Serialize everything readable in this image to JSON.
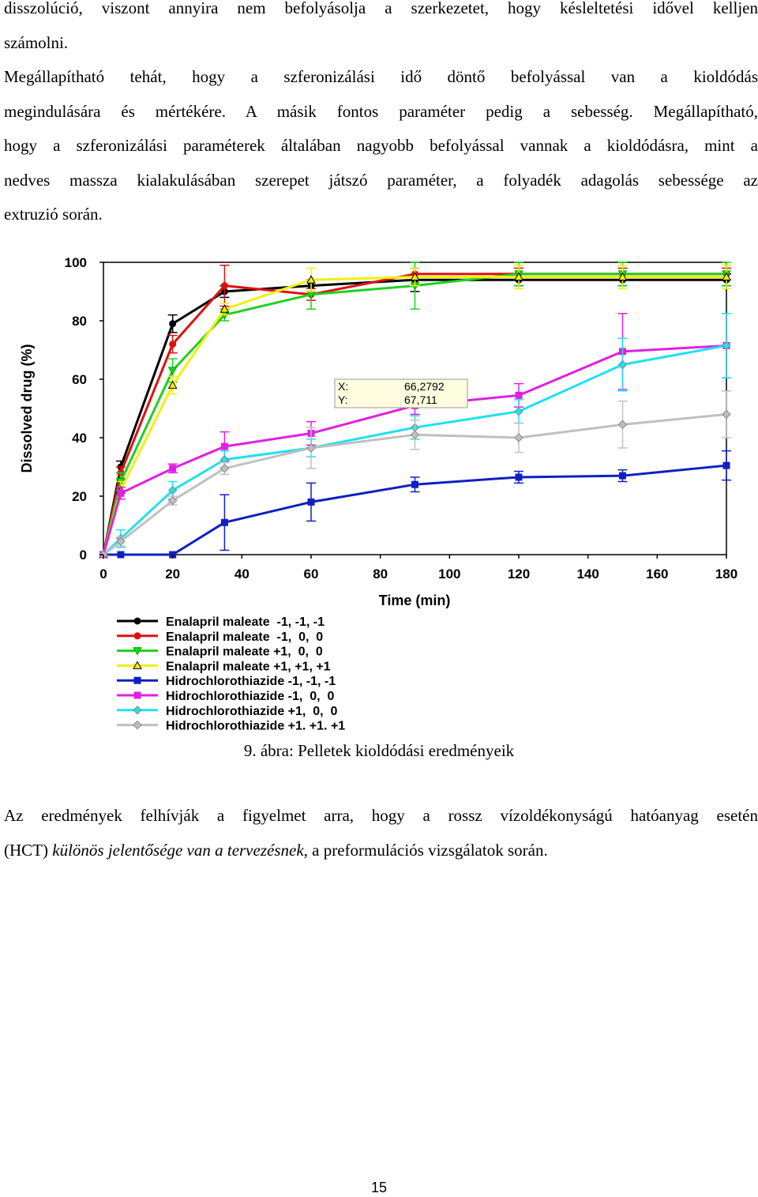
{
  "paragraph_1": {
    "lines": [
      "disszolúció, viszont annyira nem befolyásolja a szerkezetet, hogy késleltetési idővel kelljen",
      "számolni.",
      "Megállapítható tehát, hogy a szferonizálási idő döntő befolyással van a kioldódás",
      "megindulására és mértékére. A másik fontos paraméter pedig a sebesség. Megállapítható,",
      "hogy a szferonizálási paraméterek általában nagyobb befolyással vannak a kioldódásra, mint a",
      "nedves massza kialakulásában szerepet játszó paraméter, a folyadék adagolás sebessége az",
      "extruzió során."
    ]
  },
  "figure_caption": "9. ábra: Pelletek kioldódási eredményeik",
  "paragraph_2": {
    "line_1": "Az eredmények felhívják a figyelmet arra, hogy a rossz vízoldékonyságú hatóanyag esetén",
    "line_2_prefix": "(HCT) ",
    "line_2_italic": "különös jelentősége van a tervezésnek",
    "line_2_suffix": ", a preformulációs vizsgálatok során."
  },
  "page_number": "15",
  "chart_data": {
    "type": "line",
    "xlabel": "Time (min)",
    "ylabel": "Dissolved drug (%)",
    "xlim": [
      0,
      180
    ],
    "ylim": [
      0,
      100
    ],
    "xticks": [
      0,
      20,
      40,
      60,
      80,
      100,
      120,
      140,
      160,
      180
    ],
    "yticks": [
      0,
      20,
      40,
      60,
      80,
      100
    ],
    "x": [
      0,
      5,
      20,
      35,
      60,
      90,
      120,
      150,
      180
    ],
    "series": [
      {
        "name": "Enalapril maleate  -1, -1, -1",
        "color": "#000000",
        "marker": "circle",
        "values": [
          0,
          30,
          79,
          90,
          92,
          94,
          94,
          94,
          94
        ],
        "errors": [
          0,
          2,
          3,
          2,
          2,
          4,
          2,
          2,
          2
        ]
      },
      {
        "name": "Enalapril maleate  -1,  0,  0",
        "color": "#e01010",
        "marker": "circle",
        "values": [
          0,
          28,
          72,
          92,
          89,
          96,
          96,
          96,
          96
        ],
        "errors": [
          0,
          2,
          3,
          7,
          2,
          2,
          2,
          2,
          2
        ]
      },
      {
        "name": "Enalapril maleate +1,  0,  0",
        "color": "#20d020",
        "marker": "triangle-down",
        "values": [
          0,
          25,
          63,
          82,
          89,
          92,
          96,
          96,
          96
        ],
        "errors": [
          0,
          3,
          4,
          2,
          5,
          8,
          4,
          4,
          4
        ]
      },
      {
        "name": "Enalapril maleate +1, +1, +1",
        "color": "#f0f010",
        "marker": "triangle-up",
        "values": [
          0,
          22,
          58,
          84,
          94,
          95,
          95,
          95,
          95
        ],
        "errors": [
          0,
          3,
          3,
          2,
          4,
          3,
          4,
          4,
          4
        ]
      },
      {
        "name": "Hidrochlorothiazide -1, -1, -1",
        "color": "#1020c0",
        "marker": "square",
        "values": [
          0,
          0,
          0,
          11,
          18,
          24,
          26.5,
          27,
          30.5
        ],
        "errors": [
          0,
          0,
          0,
          9.5,
          6.5,
          2.5,
          2,
          2,
          5
        ]
      },
      {
        "name": "Hidrochlorothiazide -1,  0,  0",
        "color": "#e020e0",
        "marker": "square",
        "values": [
          0,
          21,
          29.5,
          37,
          41.5,
          51,
          54.5,
          69.5,
          71.5
        ],
        "errors": [
          0,
          2,
          1.5,
          5,
          4,
          3,
          4,
          13,
          11
        ]
      },
      {
        "name": "Hidrochlorothiazide +1,  0,  0",
        "color": "#20e0f0",
        "marker": "diamond",
        "values": [
          0,
          5.5,
          22,
          32.5,
          36.5,
          43.5,
          49,
          65,
          71.5
        ],
        "errors": [
          0,
          3,
          3,
          3,
          3,
          4,
          4,
          9,
          11
        ]
      },
      {
        "name": "Hidrochlorothiazide +1. +1. +1",
        "color": "#c0c0c0",
        "marker": "diamond",
        "values": [
          0,
          4.5,
          18.5,
          29.5,
          36.5,
          41,
          40,
          44.5,
          48
        ],
        "errors": [
          0,
          1.5,
          1.5,
          2,
          7,
          5,
          5,
          8,
          8
        ]
      }
    ],
    "tooltip": {
      "x_label": "X:",
      "x_value": "66,2792",
      "y_label": "Y:",
      "y_value": "67,711"
    },
    "legend_position": "bottom-left"
  }
}
